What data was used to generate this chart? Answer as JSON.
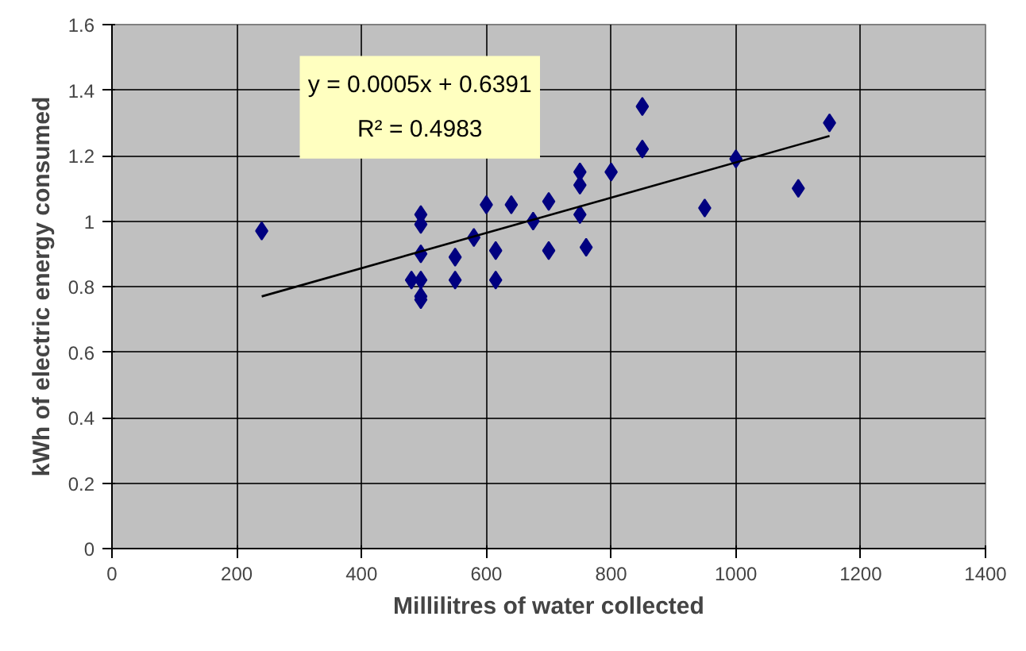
{
  "chart_data": {
    "type": "scatter",
    "xlabel": "Millilitres of water collected",
    "ylabel": "kWh of electric energy consumed",
    "annotations": [
      "y = 0.0005x + 0.6391",
      "R² = 0.4983"
    ],
    "xlim": [
      0,
      1400
    ],
    "ylim": [
      0,
      1.6
    ],
    "xticks": [
      0,
      200,
      400,
      600,
      800,
      1000,
      1200,
      1400
    ],
    "yticks": [
      0,
      {
        "value": 0.2,
        "label": "0.2"
      },
      {
        "value": 0.4,
        "label": "0.4"
      },
      {
        "value": 0.6,
        "label": "0.6"
      },
      {
        "value": 0.8,
        "label": "0.8"
      },
      1,
      {
        "value": 1.2,
        "label": "1.2"
      },
      {
        "value": 1.4,
        "label": "1.4"
      },
      {
        "value": 1.6,
        "label": "1.6"
      }
    ],
    "grid": true,
    "marker": "diamond",
    "series": [
      {
        "color": "#000080",
        "x": [
          240,
          480,
          495,
          495,
          495,
          495,
          495,
          495,
          550,
          550,
          580,
          600,
          615,
          615,
          640,
          675,
          700,
          700,
          750,
          750,
          750,
          760,
          800,
          850,
          850,
          950,
          1000,
          1100,
          1150
        ],
        "values": [
          0.97,
          0.82,
          1.02,
          0.99,
          0.9,
          0.82,
          0.77,
          0.76,
          0.89,
          0.82,
          0.95,
          1.05,
          0.91,
          0.82,
          1.05,
          1.0,
          1.06,
          0.91,
          1.15,
          1.11,
          1.02,
          0.92,
          1.15,
          1.35,
          1.22,
          1.04,
          1.19,
          1.1,
          1.3
        ]
      },
      {
        "type": "line",
        "color": "#000000",
        "marker": "none",
        "x": [
          240,
          1150
        ],
        "values": [
          0.77,
          1.26
        ]
      }
    ]
  }
}
